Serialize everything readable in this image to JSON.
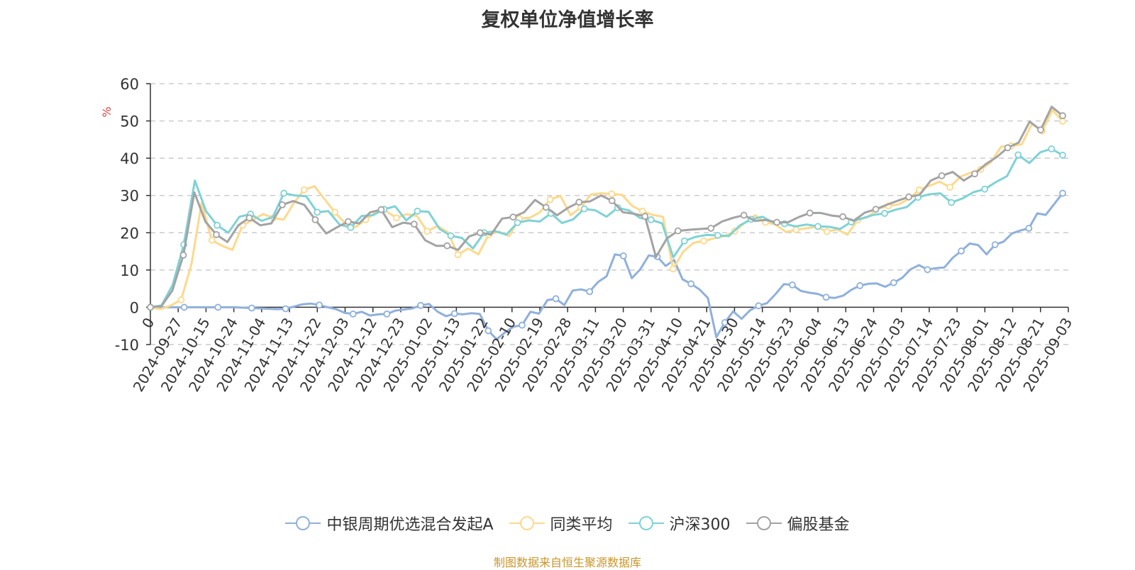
{
  "chart_data": {
    "type": "line",
    "title": "复权单位净值增长率",
    "ylabel": "%",
    "ylim": [
      -10,
      60
    ],
    "yticks": [
      -10,
      0,
      10,
      20,
      30,
      40,
      50,
      60
    ],
    "x_tick_labels": [
      "0",
      "2024-09-27",
      "2024-10-15",
      "2024-10-24",
      "2024-11-04",
      "2024-11-13",
      "2024-11-22",
      "2024-12-03",
      "2024-12-12",
      "2024-12-23",
      "2025-01-02",
      "2025-01-13",
      "2025-01-22",
      "2025-02-10",
      "2025-02-19",
      "2025-02-28",
      "2025-03-11",
      "2025-03-20",
      "2025-03-31",
      "2025-04-10",
      "2025-04-21",
      "2025-04-30",
      "2025-05-14",
      "2025-05-23",
      "2025-06-04",
      "2025-06-13",
      "2025-06-24",
      "2025-07-03",
      "2025-07-14",
      "2025-07-23",
      "2025-08-01",
      "2025-08-12",
      "2025-08-21",
      "2025-09-03"
    ],
    "grid": true,
    "legend_position": "bottom",
    "series": [
      {
        "name": "中银周期优选混合发起A",
        "color": "#8fb0dc",
        "values": [
          0,
          0,
          0,
          0,
          0,
          0,
          0,
          0,
          0,
          0,
          0,
          -0.1,
          -0.2,
          -0.3,
          -0.4,
          -0.5,
          -0.4,
          0.2,
          0.8,
          1,
          0.6,
          0,
          -0.5,
          -1.5,
          -1.8,
          -1.2,
          -2.2,
          -1.9,
          -1.8,
          -0.9,
          -0.6,
          -0.3,
          0.5,
          0.9,
          -1.2,
          -2.4,
          -1.7,
          -1.9,
          -1.6,
          -1.8,
          -6.3,
          -8.6,
          -6.7,
          -5.2,
          -4.8,
          -1.2,
          -1.7,
          1.9,
          2.3,
          0.6,
          4.5,
          4.8,
          4.2,
          6.8,
          8.3,
          14.2,
          13.8,
          7.8,
          10.2,
          13.9,
          13.6,
          11.1,
          12.7,
          7.5,
          6.3,
          4.8,
          2.5,
          -8,
          -4.1,
          -1.1,
          -3.1,
          -0.8,
          0.4,
          1.1,
          3.5,
          6.2,
          6,
          4.4,
          3.9,
          3.6,
          2.7,
          2.5,
          3.1,
          4.7,
          5.8,
          6.3,
          6.4,
          5.5,
          6.6,
          7.9,
          10.2,
          11.3,
          10.1,
          10.5,
          10.7,
          13.3,
          15.1,
          17.1,
          16.7,
          14.2,
          16.8,
          17.6,
          19.8,
          20.6,
          21.2,
          25.2,
          24.8,
          27.7,
          30.6
        ]
      },
      {
        "name": "同类平均",
        "color": "#fdd98c",
        "values": [
          0,
          -0.5,
          0.5,
          2,
          11.5,
          28,
          18,
          16.5,
          15.4,
          22,
          23.5,
          25,
          24,
          23.5,
          28,
          31.5,
          32.5,
          29,
          25.5,
          22.5,
          21.5,
          23.5,
          25.5,
          25.8,
          24,
          25,
          24.5,
          20.4,
          21.8,
          20.2,
          14.1,
          15.8,
          14.2,
          19.5,
          20.3,
          19.1,
          23.8,
          24,
          25.5,
          28.9,
          29.9,
          24.7,
          26.8,
          30.3,
          30.6,
          30.4,
          30.2,
          27.2,
          25.8,
          24.8,
          24.3,
          10.3,
          15,
          17.3,
          17.8,
          18.5,
          19.1,
          20.4,
          22.7,
          24.7,
          22.8,
          22.2,
          20.2,
          20.8,
          21.2,
          21.6,
          20.3,
          20.9,
          19.5,
          23.4,
          24.2,
          26.5,
          27.2,
          27.6,
          29.1,
          31.5,
          32.6,
          33.7,
          32.2,
          35,
          36.1,
          37,
          38.9,
          43.1,
          43.3,
          43.7,
          49.2,
          47.3,
          52.9,
          49.9
        ]
      },
      {
        "name": "沪深300",
        "color": "#7fd2d6",
        "values": [
          0,
          0.5,
          6,
          16.8,
          34,
          25.8,
          22,
          20,
          24.3,
          25,
          23.2,
          24.2,
          30.6,
          30,
          29.8,
          25.5,
          25.8,
          22.2,
          21.4,
          24.5,
          24.7,
          26.3,
          27.1,
          23.3,
          25.8,
          25.6,
          21,
          19.2,
          18.6,
          15.8,
          20,
          20.4,
          19.5,
          22.7,
          23.3,
          23,
          25.2,
          22.6,
          23.6,
          26.4,
          26,
          24.3,
          26.7,
          26,
          24,
          23.5,
          22.5,
          13.4,
          17.8,
          18.9,
          19.4,
          19.3,
          19.1,
          22,
          23.6,
          24.3,
          22.7,
          22.4,
          21.7,
          22.2,
          21.7,
          21.6,
          21,
          22.9,
          23.9,
          24.8,
          25.2,
          26.2,
          26.9,
          29.5,
          30.3,
          30.6,
          28.1,
          29.2,
          30.9,
          31.7,
          33.6,
          35.2,
          40.9,
          38.7,
          41.6,
          42.5,
          40.8
        ]
      },
      {
        "name": "偏股基金",
        "color": "#a3a3a3",
        "values": [
          0,
          0.3,
          4.5,
          14,
          30.8,
          23,
          19.5,
          17.5,
          22,
          24,
          22,
          22.5,
          27.5,
          28.5,
          27.5,
          23.5,
          19.8,
          21.5,
          23,
          22.5,
          25.5,
          26.2,
          21.5,
          22.7,
          22.3,
          18,
          16.5,
          16.5,
          15.4,
          19,
          20,
          19.5,
          23.8,
          24.2,
          25.5,
          28.8,
          26.8,
          24.7,
          26.7,
          28.2,
          28.4,
          30,
          28.6,
          25.5,
          25.1,
          24.4,
          13.5,
          18.5,
          20.5,
          20.8,
          21,
          21.2,
          23,
          24,
          24.7,
          23.2,
          23.4,
          22.8,
          22.8,
          24.2,
          25.3,
          25.3,
          24.6,
          24.3,
          23.2,
          25.4,
          26.3,
          27.5,
          28.6,
          29.6,
          30.2,
          34,
          35.3,
          36.3,
          34,
          35.8,
          38.4,
          40.3,
          42.8,
          44.2,
          49.8,
          47.6,
          53.8,
          51.4
        ]
      }
    ]
  },
  "source_text": "制图数据来自恒生聚源数据库"
}
